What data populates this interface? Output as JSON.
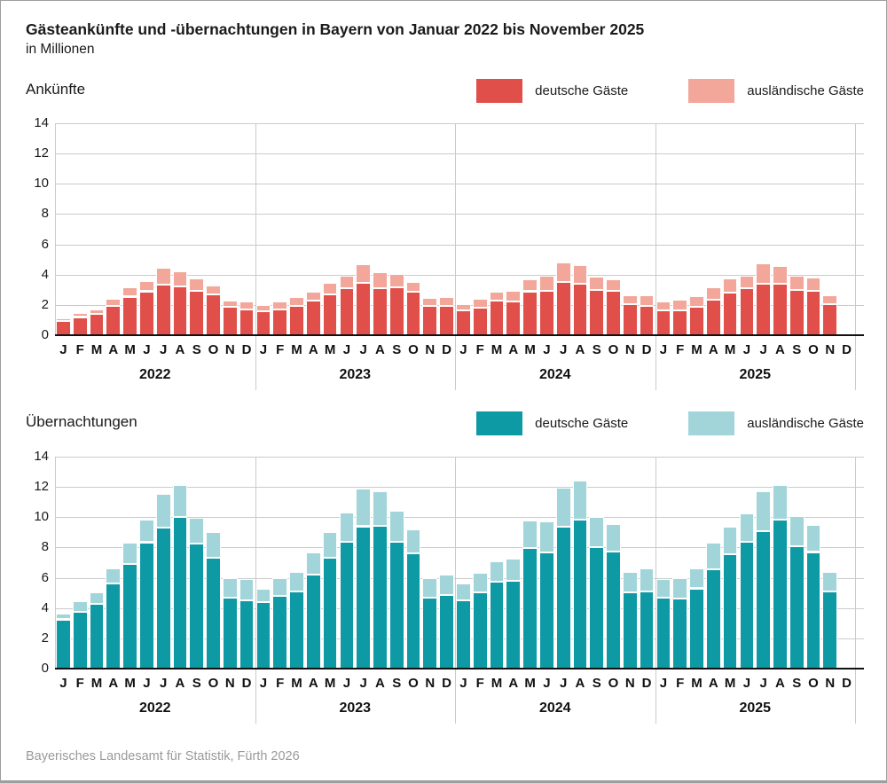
{
  "page": {
    "title": "Gästeankünfte und -übernachtungen in Bayern von Januar 2022 bis November 2025",
    "subtitle": "in Millionen",
    "footer": "Bayerisches Landesamt für Statistik, Fürth 2026"
  },
  "colors": {
    "arrivals_domestic": "#e04f4a",
    "arrivals_foreign": "#f3a79b",
    "nights_domestic": "#0d9aa5",
    "nights_foreign": "#a2d5da",
    "gridline": "#cbcbcb",
    "axis": "#111111",
    "source_text": "#9a9a9a"
  },
  "axis": {
    "y_ticks": [
      14,
      12,
      10,
      8,
      6,
      4,
      2,
      0
    ],
    "month_letters": [
      "J",
      "F",
      "M",
      "A",
      "M",
      "J",
      "J",
      "A",
      "S",
      "O",
      "N",
      "D"
    ],
    "years": [
      "2022",
      "2023",
      "2024",
      "2025"
    ]
  },
  "chart_data": [
    {
      "type": "bar",
      "stacked": true,
      "title": "Ankünfte",
      "ylabel": "in Millionen",
      "ylim": [
        0,
        14
      ],
      "grid": true,
      "legend_position": "top-right",
      "x_range": "Januar 2022 bis November 2025",
      "categories_note": "47 months: Jan 2022 - Nov 2025, Dec 2025 slot empty",
      "series": [
        {
          "name": "deutsche Gäste",
          "color": "#e04f4a",
          "values": [
            0.95,
            1.2,
            1.4,
            1.95,
            2.55,
            2.9,
            3.35,
            3.2,
            2.95,
            2.7,
            1.85,
            1.7,
            1.6,
            1.7,
            1.95,
            2.3,
            2.7,
            3.1,
            3.45,
            3.1,
            3.15,
            2.85,
            1.95,
            1.95,
            1.65,
            1.8,
            2.3,
            2.25,
            2.9,
            2.95,
            3.5,
            3.4,
            3.0,
            2.95,
            2.05,
            1.95,
            1.65,
            1.65,
            1.85,
            2.35,
            2.8,
            3.1,
            3.4,
            3.4,
            3.0,
            2.95,
            2.05
          ]
        },
        {
          "name": "ausländische Gäste",
          "color": "#f3a79b",
          "values": [
            0.15,
            0.25,
            0.3,
            0.45,
            0.6,
            0.65,
            1.1,
            1.0,
            0.8,
            0.6,
            0.45,
            0.55,
            0.4,
            0.5,
            0.55,
            0.6,
            0.75,
            0.85,
            1.25,
            1.05,
            0.9,
            0.65,
            0.5,
            0.6,
            0.4,
            0.6,
            0.6,
            0.7,
            0.8,
            0.95,
            1.3,
            1.25,
            0.85,
            0.75,
            0.6,
            0.7,
            0.55,
            0.7,
            0.75,
            0.8,
            0.95,
            0.8,
            1.35,
            1.15,
            0.9,
            0.85,
            0.6
          ]
        }
      ]
    },
    {
      "type": "bar",
      "stacked": true,
      "title": "Übernachtungen",
      "ylabel": "in Millionen",
      "ylim": [
        0,
        14
      ],
      "grid": true,
      "legend_position": "top-right",
      "x_range": "Januar 2022 bis November 2025",
      "categories_note": "47 months: Jan 2022 - Nov 2025, Dec 2025 slot empty",
      "series": [
        {
          "name": "deutsche Gäste",
          "color": "#0d9aa5",
          "values": [
            3.25,
            3.75,
            4.25,
            5.6,
            6.9,
            8.35,
            9.3,
            10.0,
            8.25,
            7.35,
            4.7,
            4.5,
            4.4,
            4.8,
            5.1,
            6.2,
            7.3,
            8.4,
            9.4,
            9.45,
            8.4,
            7.6,
            4.7,
            4.85,
            4.5,
            5.05,
            5.75,
            5.8,
            7.95,
            7.65,
            9.4,
            9.85,
            8.0,
            7.75,
            5.05,
            5.1,
            4.7,
            4.65,
            5.3,
            6.55,
            7.55,
            8.4,
            9.1,
            9.85,
            8.1,
            7.7,
            5.1
          ]
        },
        {
          "name": "ausländische Gäste",
          "color": "#a2d5da",
          "values": [
            0.4,
            0.7,
            0.8,
            1.0,
            1.4,
            1.5,
            2.25,
            2.1,
            1.7,
            1.7,
            1.25,
            1.4,
            0.9,
            1.15,
            1.3,
            1.5,
            1.75,
            1.9,
            2.5,
            2.25,
            2.05,
            1.6,
            1.3,
            1.35,
            1.1,
            1.3,
            1.35,
            1.45,
            1.85,
            2.1,
            2.55,
            2.6,
            2.0,
            1.8,
            1.35,
            1.55,
            1.2,
            1.35,
            1.3,
            1.75,
            1.85,
            1.85,
            2.6,
            2.3,
            2.0,
            1.8,
            1.3
          ]
        }
      ]
    }
  ]
}
